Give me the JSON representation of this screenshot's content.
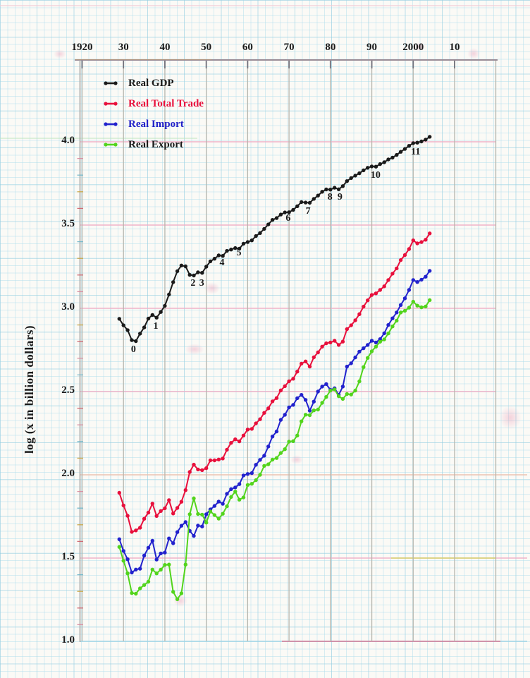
{
  "chart": {
    "y_axis_title": "log (x in billion dollars)"
  },
  "legend": {
    "items": [
      {
        "label": "Real GDP",
        "color": "#1a1a1a",
        "text_color": "#1a1a1a"
      },
      {
        "label": "Real Total Trade",
        "color": "#e8103c",
        "text_color": "#e8103c"
      },
      {
        "label": "Real Import",
        "color": "#2222cd",
        "text_color": "#2020c8"
      },
      {
        "label": "Real Export",
        "color": "#52d41c",
        "text_color": "#1a1a1a"
      }
    ]
  },
  "chart_data": {
    "type": "line",
    "title": "",
    "xlabel": "",
    "ylabel": "log (x in billion dollars)",
    "grid": "on",
    "legend_position": "top-left",
    "x_axis": {
      "tick_years": [
        1920,
        1930,
        1940,
        1950,
        1960,
        1970,
        1980,
        1990,
        2000,
        2010
      ],
      "tick_labels": [
        "1920",
        "30",
        "40",
        "50",
        "60",
        "70",
        "80",
        "90",
        "2000",
        "10"
      ]
    },
    "y_axis": {
      "ticks": [
        4.0,
        3.5,
        3.0,
        2.5,
        2.0,
        1.5,
        1.0
      ],
      "tick_labels": [
        "4.0",
        "3.5",
        "3.0",
        "2.5",
        "2.0",
        "1.5",
        "1.0"
      ],
      "range": [
        1.0,
        4.0
      ],
      "minor_tick_step": 0.1
    },
    "years": [
      1929,
      1930,
      1931,
      1932,
      1933,
      1934,
      1935,
      1936,
      1937,
      1938,
      1939,
      1940,
      1941,
      1942,
      1943,
      1944,
      1945,
      1946,
      1947,
      1948,
      1949,
      1950,
      1951,
      1952,
      1953,
      1954,
      1955,
      1956,
      1957,
      1958,
      1959,
      1960,
      1961,
      1962,
      1963,
      1964,
      1965,
      1966,
      1967,
      1968,
      1969,
      1970,
      1971,
      1972,
      1973,
      1974,
      1975,
      1976,
      1977,
      1978,
      1979,
      1980,
      1981,
      1982,
      1983,
      1984,
      1985,
      1986,
      1987,
      1988,
      1989,
      1990,
      1991,
      1992,
      1993,
      1994,
      1995,
      1996,
      1997,
      1998,
      1999,
      2000,
      2001,
      2002,
      2003,
      2004
    ],
    "series": [
      {
        "name": "Real GDP",
        "color": "#1a1a1a",
        "values": [
          2.937,
          2.898,
          2.869,
          2.809,
          2.803,
          2.848,
          2.885,
          2.938,
          2.96,
          2.944,
          2.978,
          3.015,
          3.083,
          3.157,
          3.223,
          3.257,
          3.252,
          3.201,
          3.197,
          3.216,
          3.213,
          3.25,
          3.282,
          3.298,
          3.318,
          3.315,
          3.345,
          3.353,
          3.362,
          3.358,
          3.388,
          3.398,
          3.408,
          3.434,
          3.452,
          3.477,
          3.504,
          3.531,
          3.542,
          3.563,
          3.576,
          3.577,
          3.591,
          3.613,
          3.638,
          3.635,
          3.634,
          3.657,
          3.677,
          3.7,
          3.714,
          3.713,
          3.724,
          3.715,
          3.734,
          3.764,
          3.782,
          3.797,
          3.811,
          3.829,
          3.844,
          3.852,
          3.851,
          3.866,
          3.877,
          3.894,
          3.905,
          3.921,
          3.94,
          3.957,
          3.976,
          3.992,
          3.995,
          4.002,
          4.013,
          4.03
        ]
      },
      {
        "name": "Real Total Trade",
        "color": "#e8103c",
        "values": [
          1.892,
          1.816,
          1.754,
          1.657,
          1.666,
          1.682,
          1.736,
          1.773,
          1.827,
          1.753,
          1.782,
          1.799,
          1.848,
          1.768,
          1.801,
          1.838,
          1.908,
          2.017,
          2.061,
          2.032,
          2.028,
          2.04,
          2.087,
          2.087,
          2.092,
          2.098,
          2.151,
          2.192,
          2.213,
          2.201,
          2.236,
          2.272,
          2.276,
          2.309,
          2.334,
          2.372,
          2.399,
          2.441,
          2.461,
          2.507,
          2.532,
          2.562,
          2.577,
          2.62,
          2.668,
          2.681,
          2.65,
          2.706,
          2.735,
          2.77,
          2.79,
          2.795,
          2.805,
          2.78,
          2.8,
          2.875,
          2.898,
          2.928,
          2.965,
          3.01,
          3.048,
          3.08,
          3.09,
          3.11,
          3.132,
          3.17,
          3.208,
          3.24,
          3.29,
          3.32,
          3.356,
          3.408,
          3.39,
          3.398,
          3.412,
          3.45
        ]
      },
      {
        "name": "Real Import",
        "color": "#2222cd",
        "values": [
          1.613,
          1.543,
          1.493,
          1.413,
          1.431,
          1.436,
          1.515,
          1.562,
          1.604,
          1.491,
          1.528,
          1.533,
          1.618,
          1.589,
          1.656,
          1.694,
          1.716,
          1.663,
          1.633,
          1.695,
          1.69,
          1.763,
          1.792,
          1.813,
          1.839,
          1.826,
          1.886,
          1.914,
          1.924,
          1.944,
          1.996,
          2.005,
          2.01,
          2.06,
          2.09,
          2.115,
          2.17,
          2.23,
          2.26,
          2.33,
          2.36,
          2.405,
          2.42,
          2.46,
          2.48,
          2.45,
          2.385,
          2.44,
          2.5,
          2.53,
          2.545,
          2.51,
          2.52,
          2.48,
          2.53,
          2.65,
          2.67,
          2.705,
          2.74,
          2.76,
          2.78,
          2.805,
          2.795,
          2.815,
          2.85,
          2.9,
          2.94,
          2.975,
          3.02,
          3.06,
          3.11,
          3.17,
          3.158,
          3.172,
          3.19,
          3.225
        ]
      },
      {
        "name": "Real Export",
        "color": "#52d41c",
        "values": [
          1.567,
          1.484,
          1.408,
          1.29,
          1.286,
          1.318,
          1.338,
          1.358,
          1.431,
          1.408,
          1.43,
          1.459,
          1.461,
          1.297,
          1.253,
          1.288,
          1.461,
          1.763,
          1.858,
          1.765,
          1.761,
          1.713,
          1.78,
          1.758,
          1.737,
          1.766,
          1.811,
          1.867,
          1.899,
          1.851,
          1.864,
          1.939,
          1.946,
          1.968,
          2.0,
          2.054,
          2.063,
          2.091,
          2.101,
          2.131,
          2.154,
          2.199,
          2.202,
          2.236,
          2.321,
          2.361,
          2.358,
          2.387,
          2.392,
          2.432,
          2.468,
          2.506,
          2.513,
          2.472,
          2.456,
          2.485,
          2.482,
          2.506,
          2.561,
          2.647,
          2.702,
          2.742,
          2.77,
          2.799,
          2.813,
          2.849,
          2.891,
          2.926,
          2.975,
          2.985,
          3.004,
          3.04,
          3.016,
          3.006,
          3.011,
          3.049
        ]
      }
    ],
    "annotations": [
      {
        "text": "0",
        "year": 1932.4,
        "value": 2.75
      },
      {
        "text": "1",
        "year": 1937.8,
        "value": 2.89
      },
      {
        "text": "2",
        "year": 1946.8,
        "value": 3.148
      },
      {
        "text": "3",
        "year": 1948.9,
        "value": 3.148
      },
      {
        "text": "4",
        "year": 1953.8,
        "value": 3.271
      },
      {
        "text": "5",
        "year": 1957.9,
        "value": 3.331
      },
      {
        "text": "6",
        "year": 1969.8,
        "value": 3.538
      },
      {
        "text": "7",
        "year": 1974.6,
        "value": 3.58
      },
      {
        "text": "8",
        "year": 1979.9,
        "value": 3.665
      },
      {
        "text": "9",
        "year": 1982.3,
        "value": 3.665
      },
      {
        "text": "10",
        "year": 1990.9,
        "value": 3.797
      },
      {
        "text": "11",
        "year": 2000.6,
        "value": 3.936
      }
    ]
  }
}
